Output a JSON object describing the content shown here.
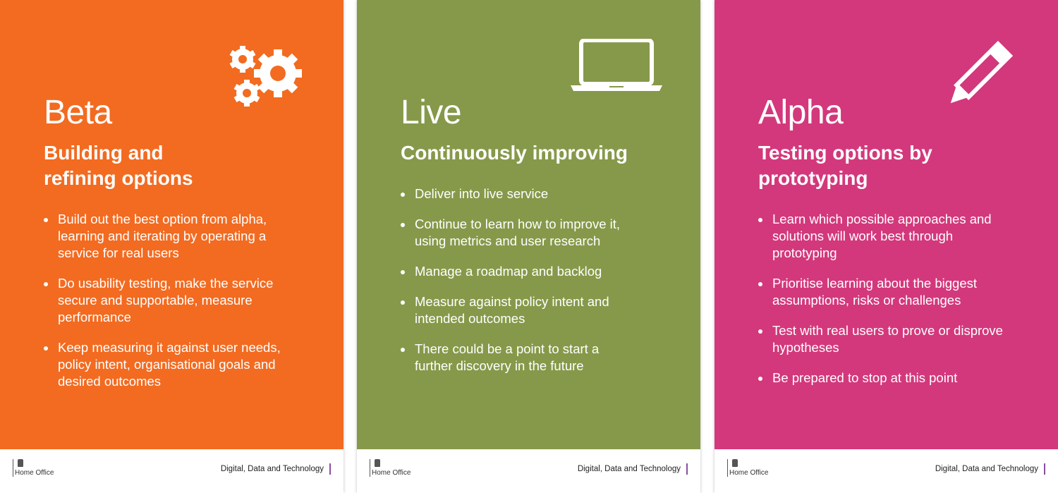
{
  "posters": [
    {
      "color": "#f26b21",
      "icon": "gears",
      "title": "Beta",
      "subtitle": "Building and refining options",
      "bullets": [
        "Build out the best option from alpha, learning and iterating by operating a service for real users",
        "Do usability testing, make the service secure and supportable, measure performance",
        "Keep measuring it against user needs, policy intent, organisational goals and desired outcomes"
      ],
      "footer_org": "Home Office",
      "footer_text": "Digital, Data and Technology"
    },
    {
      "color": "#86994a",
      "icon": "laptop",
      "title": "Live",
      "subtitle": "Continuously improving",
      "bullets": [
        "Deliver into live service",
        "Continue to learn how to improve it, using metrics and user research",
        "Manage a roadmap and backlog",
        "Measure against policy intent and intended outcomes",
        "There could be a point to start a further discovery in the future"
      ],
      "footer_org": "Home Office",
      "footer_text": "Digital, Data and Technology"
    },
    {
      "color": "#d3387c",
      "icon": "pencil",
      "title": "Alpha",
      "subtitle": "Testing options by prototyping",
      "bullets": [
        "Learn which possible approaches and solutions will work best through prototyping",
        "Prioritise learning about the biggest assumptions, risks or challenges",
        "Test with real users to prove or disprove hypotheses",
        "Be prepared to stop at this point"
      ],
      "footer_org": "Home Office",
      "footer_text": "Digital, Data and Technology"
    }
  ]
}
